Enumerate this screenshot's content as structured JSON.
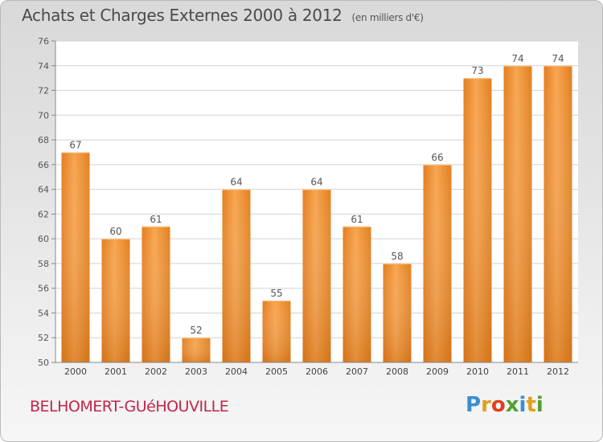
{
  "header": {
    "title": "Achats et Charges Externes 2000 à 2012",
    "subtitle": "(en milliers d'€)"
  },
  "footer": {
    "commune": "BELHOMERT-GUéHOUVILLE",
    "logo_letters": [
      "P",
      "r",
      "o",
      "x",
      "i",
      "t",
      "i"
    ],
    "logo_colors": [
      "#3a8fd0",
      "#e0a020",
      "#e04020",
      "#50a030",
      "#3a8fd0",
      "#e0a020",
      "#50a030"
    ]
  },
  "chart_data": {
    "type": "bar",
    "categories": [
      "2000",
      "2001",
      "2002",
      "2003",
      "2004",
      "2005",
      "2006",
      "2007",
      "2008",
      "2009",
      "2010",
      "2011",
      "2012"
    ],
    "values": [
      67,
      60,
      61,
      52,
      64,
      55,
      64,
      61,
      58,
      66,
      73,
      74,
      74
    ],
    "yticks": [
      "50",
      "52",
      "54",
      "56",
      "58",
      "60",
      "62",
      "64",
      "66",
      "68",
      "70",
      "72",
      "74",
      "76"
    ],
    "ylim": [
      50,
      76
    ],
    "grid": true,
    "bar_color": "#f0963a",
    "title": "Achats et Charges Externes 2000 à 2012",
    "xlabel": "",
    "ylabel": ""
  }
}
